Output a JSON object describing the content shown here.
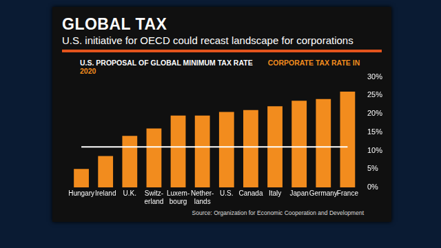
{
  "chart_data": {
    "type": "bar",
    "title": "GLOBAL TAX",
    "subtitle": "U.S. initiative for OECD could recast landscape for corporations",
    "source": "Source: Organization for Economic Cooperation and Development",
    "categories": [
      "Hungary",
      "Ireland",
      "U.K.",
      "Switz-\nerland",
      "Luxem-\nbourg",
      "Nether-\nlands",
      "U.S.",
      "Canada",
      "Italy",
      "Japan",
      "Germany",
      "France"
    ],
    "series": [
      {
        "name": "U.S. PROPOSAL OF GLOBAL MINIMUM TAX RATE",
        "type": "line",
        "color": "#ffffff",
        "values": [
          11,
          11,
          11,
          11,
          11,
          11,
          11,
          11,
          11,
          11,
          11,
          11
        ]
      },
      {
        "name": "CORPORATE TAX RATE IN 2020",
        "type": "bar",
        "color": "#f28c1e",
        "values": [
          5,
          8.5,
          14,
          16,
          19.5,
          19.5,
          20.5,
          21,
          22,
          23.5,
          24,
          26
        ]
      }
    ],
    "ylim": [
      0,
      30
    ],
    "yticks": [
      {
        "value": 0,
        "label": "0%"
      },
      {
        "value": 5,
        "label": "5%"
      },
      {
        "value": 10,
        "label": "10%"
      },
      {
        "value": 15,
        "label": "15%"
      },
      {
        "value": 20,
        "label": "20%"
      },
      {
        "value": 25,
        "label": "25%"
      },
      {
        "value": 30,
        "label": "30%"
      }
    ],
    "grid": false,
    "legend": "top"
  }
}
